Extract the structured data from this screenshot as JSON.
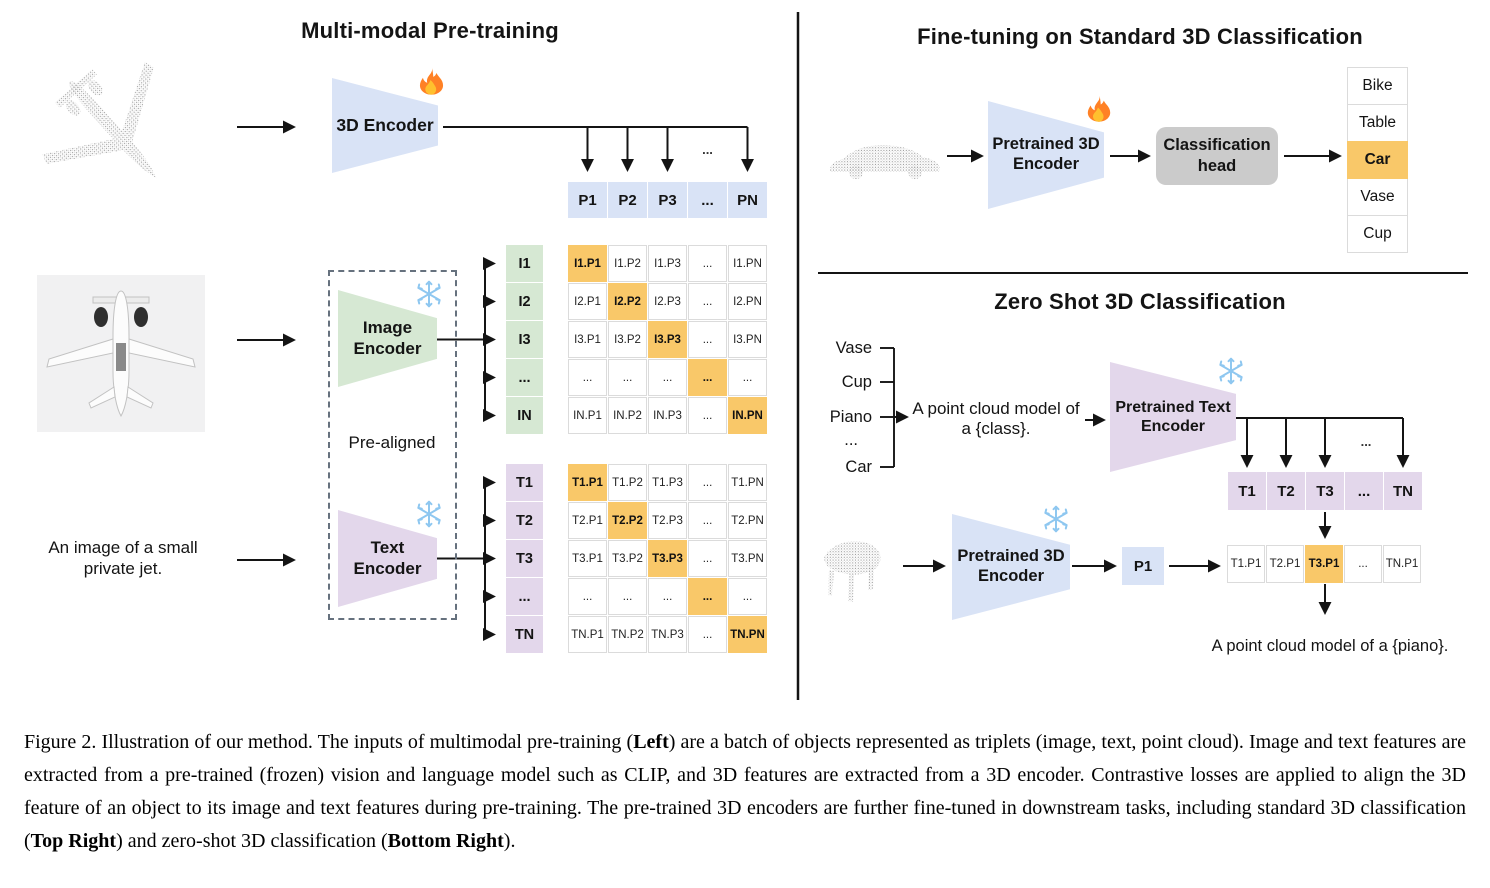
{
  "colors": {
    "blue": "#d9e3f6",
    "green": "#d6e8d3",
    "purple": "#e3d7eb",
    "highlight": "#f9c869",
    "head_gray": "#cbcbcb",
    "cell_border": "#dbdbdb"
  },
  "icons": {
    "trainable": "fire-icon",
    "frozen": "snowflake-icon"
  },
  "pretraining": {
    "title": "Multi-modal Pre-training",
    "encoder_3d_label": "3D Encoder",
    "image_encoder_label": "Image\nEncoder",
    "text_encoder_label": "Text\nEncoder",
    "pre_aligned_label": "Pre-aligned",
    "text_input": "An image of a small\nprivate jet.",
    "p_row": [
      "P1",
      "P2",
      "P3",
      "...",
      "PN"
    ],
    "p_row_ellipsis": "...",
    "image_matrix": {
      "row_labels": [
        "I1",
        "I2",
        "I3",
        "...",
        "IN"
      ],
      "cells": [
        [
          "I1.P1",
          "I1.P2",
          "I1.P3",
          "...",
          "I1.PN"
        ],
        [
          "I2.P1",
          "I2.P2",
          "I2.P3",
          "...",
          "I2.PN"
        ],
        [
          "I3.P1",
          "I3.P2",
          "I3.P3",
          "...",
          "I3.PN"
        ],
        [
          "...",
          "...",
          "...",
          "...",
          "..."
        ],
        [
          "IN.P1",
          "IN.P2",
          "IN.P3",
          "...",
          "IN.PN"
        ]
      ]
    },
    "text_matrix": {
      "row_labels": [
        "T1",
        "T2",
        "T3",
        "...",
        "TN"
      ],
      "cells": [
        [
          "T1.P1",
          "T1.P2",
          "T1.P3",
          "...",
          "T1.PN"
        ],
        [
          "T2.P1",
          "T2.P2",
          "T2.P3",
          "...",
          "T2.PN"
        ],
        [
          "T3.P1",
          "T3.P2",
          "T3.P3",
          "...",
          "T3.PN"
        ],
        [
          "...",
          "...",
          "...",
          "...",
          "..."
        ],
        [
          "TN.P1",
          "TN.P2",
          "TN.P3",
          "...",
          "TN.PN"
        ]
      ]
    }
  },
  "finetuning": {
    "title": "Fine-tuning on Standard 3D Classification",
    "encoder_label": "Pretrained 3D\nEncoder",
    "head_label": "Classification\nhead",
    "classes": [
      "Bike",
      "Table",
      "Car",
      "Vase",
      "Cup"
    ],
    "predicted_index": 2
  },
  "zeroshot": {
    "title": "Zero Shot 3D Classification",
    "class_list": [
      "Vase",
      "Cup",
      "Piano",
      "...",
      "Car"
    ],
    "prompt": "A point cloud model of\na {class}.",
    "text_encoder_label": "Pretrained Text\nEncoder",
    "encoder_3d_label": "Pretrained 3D\nEncoder",
    "p_cell": "P1",
    "t_row": [
      "T1",
      "T2",
      "T3",
      "...",
      "TN"
    ],
    "t_row_ellipsis": "...",
    "sim_row": [
      "T1.P1",
      "T2.P1",
      "T3.P1",
      "...",
      "TN.P1"
    ],
    "sim_highlight_index": 2,
    "result_text": "A point cloud model of a {piano}."
  },
  "caption": {
    "segments": [
      {
        "t": "Figure 2. Illustration of our method.  The inputs of multimodal pre-training ("
      },
      {
        "t": "Left",
        "b": true
      },
      {
        "t": ") are a batch of objects represented as triplets (image, text, point cloud).  Image and text features are extracted from a pre-trained (frozen) vision and language model such as CLIP, and 3D features are extracted from a 3D encoder.  Contrastive losses are applied to align the 3D feature of an object to its image and text features during pre-training.  The pre-trained 3D encoders are further fine-tuned in downstream tasks, including standard 3D classification ("
      },
      {
        "t": "Top Right",
        "b": true
      },
      {
        "t": ") and zero-shot 3D classification ("
      },
      {
        "t": "Bottom Right",
        "b": true
      },
      {
        "t": ")."
      }
    ]
  }
}
